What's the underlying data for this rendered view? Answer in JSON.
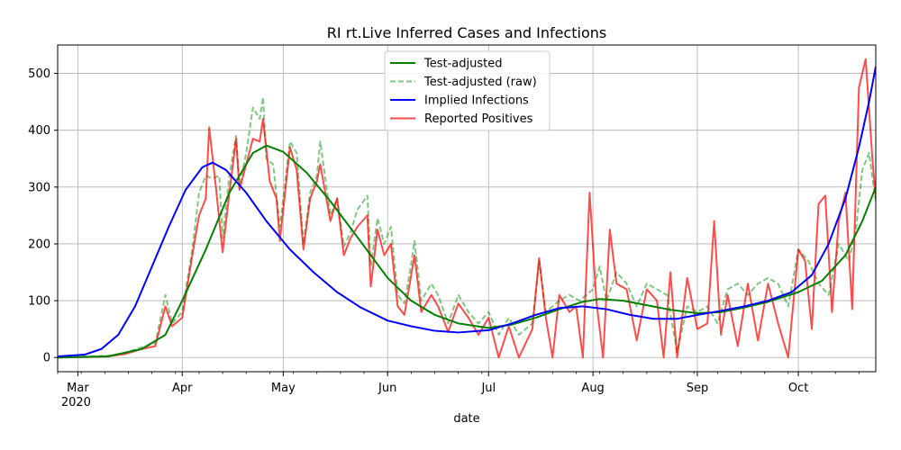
{
  "chart_data": {
    "type": "line",
    "title": "RI rt.Live Inferred Cases and Infections",
    "xlabel": "date",
    "ylabel": "",
    "x_range": [
      "2020-02-24",
      "2020-10-24"
    ],
    "ylim": [
      -25,
      550
    ],
    "grid": true,
    "legend_position": "top-center",
    "x_ticks": [
      {
        "date": "2020-03-01",
        "label": "Mar",
        "sublabel": "2020"
      },
      {
        "date": "2020-04-01",
        "label": "Apr"
      },
      {
        "date": "2020-05-01",
        "label": "May"
      },
      {
        "date": "2020-06-01",
        "label": "Jun"
      },
      {
        "date": "2020-07-01",
        "label": "Jul"
      },
      {
        "date": "2020-08-01",
        "label": "Aug"
      },
      {
        "date": "2020-09-01",
        "label": "Sep"
      },
      {
        "date": "2020-10-01",
        "label": "Oct"
      }
    ],
    "y_ticks": [
      0,
      100,
      200,
      300,
      400,
      500
    ],
    "series": [
      {
        "name": "Test-adjusted",
        "color": "#008000",
        "style": "solid",
        "points": [
          [
            "2020-02-24",
            0
          ],
          [
            "2020-03-10",
            2
          ],
          [
            "2020-03-20",
            15
          ],
          [
            "2020-03-27",
            40
          ],
          [
            "2020-04-01",
            100
          ],
          [
            "2020-04-08",
            190
          ],
          [
            "2020-04-15",
            290
          ],
          [
            "2020-04-22",
            360
          ],
          [
            "2020-04-26",
            373
          ],
          [
            "2020-05-01",
            362
          ],
          [
            "2020-05-08",
            325
          ],
          [
            "2020-05-15",
            275
          ],
          [
            "2020-05-22",
            220
          ],
          [
            "2020-06-01",
            140
          ],
          [
            "2020-06-08",
            100
          ],
          [
            "2020-06-15",
            75
          ],
          [
            "2020-06-22",
            60
          ],
          [
            "2020-07-01",
            52
          ],
          [
            "2020-07-08",
            58
          ],
          [
            "2020-07-15",
            70
          ],
          [
            "2020-07-22",
            85
          ],
          [
            "2020-07-29",
            98
          ],
          [
            "2020-08-03",
            103
          ],
          [
            "2020-08-10",
            100
          ],
          [
            "2020-08-17",
            92
          ],
          [
            "2020-08-24",
            84
          ],
          [
            "2020-09-01",
            78
          ],
          [
            "2020-09-08",
            80
          ],
          [
            "2020-09-15",
            88
          ],
          [
            "2020-09-22",
            98
          ],
          [
            "2020-10-01",
            115
          ],
          [
            "2020-10-08",
            135
          ],
          [
            "2020-10-15",
            180
          ],
          [
            "2020-10-20",
            240
          ],
          [
            "2020-10-24",
            300
          ]
        ]
      },
      {
        "name": "Test-adjusted (raw)",
        "color": "#2ca02c",
        "style": "dashed",
        "points": [
          [
            "2020-02-24",
            0
          ],
          [
            "2020-03-05",
            2
          ],
          [
            "2020-03-10",
            3
          ],
          [
            "2020-03-15",
            8
          ],
          [
            "2020-03-20",
            18
          ],
          [
            "2020-03-24",
            25
          ],
          [
            "2020-03-27",
            110
          ],
          [
            "2020-03-29",
            60
          ],
          [
            "2020-04-01",
            80
          ],
          [
            "2020-04-04",
            190
          ],
          [
            "2020-04-06",
            290
          ],
          [
            "2020-04-08",
            320
          ],
          [
            "2020-04-10",
            315
          ],
          [
            "2020-04-12",
            320
          ],
          [
            "2020-04-13",
            210
          ],
          [
            "2020-04-15",
            320
          ],
          [
            "2020-04-17",
            390
          ],
          [
            "2020-04-18",
            300
          ],
          [
            "2020-04-20",
            360
          ],
          [
            "2020-04-22",
            440
          ],
          [
            "2020-04-24",
            420
          ],
          [
            "2020-04-25",
            458
          ],
          [
            "2020-04-26",
            350
          ],
          [
            "2020-04-28",
            340
          ],
          [
            "2020-04-30",
            230
          ],
          [
            "2020-05-03",
            380
          ],
          [
            "2020-05-05",
            360
          ],
          [
            "2020-05-07",
            200
          ],
          [
            "2020-05-09",
            290
          ],
          [
            "2020-05-11",
            320
          ],
          [
            "2020-05-12",
            380
          ],
          [
            "2020-05-15",
            250
          ],
          [
            "2020-05-17",
            280
          ],
          [
            "2020-05-19",
            195
          ],
          [
            "2020-05-21",
            220
          ],
          [
            "2020-05-23",
            260
          ],
          [
            "2020-05-26",
            285
          ],
          [
            "2020-05-27",
            160
          ],
          [
            "2020-05-29",
            245
          ],
          [
            "2020-05-31",
            200
          ],
          [
            "2020-06-02",
            230
          ],
          [
            "2020-06-04",
            110
          ],
          [
            "2020-06-06",
            95
          ],
          [
            "2020-06-08",
            165
          ],
          [
            "2020-06-09",
            205
          ],
          [
            "2020-06-11",
            100
          ],
          [
            "2020-06-14",
            130
          ],
          [
            "2020-06-16",
            110
          ],
          [
            "2020-06-19",
            60
          ],
          [
            "2020-06-22",
            110
          ],
          [
            "2020-06-25",
            80
          ],
          [
            "2020-06-28",
            60
          ],
          [
            "2020-07-01",
            80
          ],
          [
            "2020-07-04",
            40
          ],
          [
            "2020-07-07",
            70
          ],
          [
            "2020-07-10",
            40
          ],
          [
            "2020-07-14",
            60
          ],
          [
            "2020-07-16",
            170
          ],
          [
            "2020-07-18",
            80
          ],
          [
            "2020-07-22",
            100
          ],
          [
            "2020-07-25",
            110
          ],
          [
            "2020-07-28",
            100
          ],
          [
            "2020-08-01",
            120
          ],
          [
            "2020-08-03",
            160
          ],
          [
            "2020-08-05",
            100
          ],
          [
            "2020-08-08",
            150
          ],
          [
            "2020-08-11",
            130
          ],
          [
            "2020-08-14",
            90
          ],
          [
            "2020-08-17",
            130
          ],
          [
            "2020-08-20",
            120
          ],
          [
            "2020-08-23",
            110
          ],
          [
            "2020-08-26",
            10
          ],
          [
            "2020-08-29",
            90
          ],
          [
            "2020-09-01",
            80
          ],
          [
            "2020-09-04",
            90
          ],
          [
            "2020-09-07",
            60
          ],
          [
            "2020-09-10",
            120
          ],
          [
            "2020-09-13",
            130
          ],
          [
            "2020-09-16",
            110
          ],
          [
            "2020-09-19",
            130
          ],
          [
            "2020-09-22",
            140
          ],
          [
            "2020-09-25",
            130
          ],
          [
            "2020-09-28",
            90
          ],
          [
            "2020-10-01",
            190
          ],
          [
            "2020-10-04",
            170
          ],
          [
            "2020-10-07",
            130
          ],
          [
            "2020-10-10",
            110
          ],
          [
            "2020-10-13",
            200
          ],
          [
            "2020-10-16",
            170
          ],
          [
            "2020-10-18",
            220
          ],
          [
            "2020-10-20",
            330
          ],
          [
            "2020-10-22",
            360
          ],
          [
            "2020-10-24",
            275
          ]
        ]
      },
      {
        "name": "Implied Infections",
        "color": "#0000ff",
        "style": "solid",
        "points": [
          [
            "2020-02-24",
            2
          ],
          [
            "2020-03-03",
            5
          ],
          [
            "2020-03-08",
            15
          ],
          [
            "2020-03-13",
            40
          ],
          [
            "2020-03-18",
            90
          ],
          [
            "2020-03-23",
            160
          ],
          [
            "2020-03-28",
            230
          ],
          [
            "2020-04-02",
            295
          ],
          [
            "2020-04-07",
            335
          ],
          [
            "2020-04-10",
            343
          ],
          [
            "2020-04-14",
            330
          ],
          [
            "2020-04-20",
            290
          ],
          [
            "2020-04-26",
            240
          ],
          [
            "2020-05-03",
            190
          ],
          [
            "2020-05-10",
            150
          ],
          [
            "2020-05-17",
            115
          ],
          [
            "2020-05-24",
            88
          ],
          [
            "2020-06-01",
            65
          ],
          [
            "2020-06-08",
            55
          ],
          [
            "2020-06-15",
            47
          ],
          [
            "2020-06-22",
            44
          ],
          [
            "2020-07-01",
            48
          ],
          [
            "2020-07-08",
            60
          ],
          [
            "2020-07-15",
            75
          ],
          [
            "2020-07-22",
            87
          ],
          [
            "2020-07-29",
            90
          ],
          [
            "2020-08-05",
            85
          ],
          [
            "2020-08-12",
            75
          ],
          [
            "2020-08-19",
            68
          ],
          [
            "2020-08-26",
            68
          ],
          [
            "2020-09-01",
            75
          ],
          [
            "2020-09-08",
            82
          ],
          [
            "2020-09-15",
            90
          ],
          [
            "2020-09-22",
            100
          ],
          [
            "2020-09-29",
            115
          ],
          [
            "2020-10-05",
            145
          ],
          [
            "2020-10-10",
            200
          ],
          [
            "2020-10-15",
            280
          ],
          [
            "2020-10-19",
            370
          ],
          [
            "2020-10-22",
            450
          ],
          [
            "2020-10-24",
            512
          ]
        ]
      },
      {
        "name": "Reported Positives",
        "color": "#ff0000",
        "style": "solid",
        "points": [
          [
            "2020-02-24",
            0
          ],
          [
            "2020-03-05",
            1
          ],
          [
            "2020-03-10",
            2
          ],
          [
            "2020-03-15",
            6
          ],
          [
            "2020-03-20",
            15
          ],
          [
            "2020-03-24",
            20
          ],
          [
            "2020-03-27",
            90
          ],
          [
            "2020-03-29",
            55
          ],
          [
            "2020-04-01",
            70
          ],
          [
            "2020-04-04",
            180
          ],
          [
            "2020-04-06",
            250
          ],
          [
            "2020-04-08",
            280
          ],
          [
            "2020-04-09",
            405
          ],
          [
            "2020-04-11",
            300
          ],
          [
            "2020-04-13",
            185
          ],
          [
            "2020-04-15",
            290
          ],
          [
            "2020-04-17",
            385
          ],
          [
            "2020-04-18",
            295
          ],
          [
            "2020-04-20",
            340
          ],
          [
            "2020-04-22",
            385
          ],
          [
            "2020-04-24",
            380
          ],
          [
            "2020-04-25",
            420
          ],
          [
            "2020-04-27",
            310
          ],
          [
            "2020-04-29",
            280
          ],
          [
            "2020-04-30",
            205
          ],
          [
            "2020-05-03",
            370
          ],
          [
            "2020-05-05",
            330
          ],
          [
            "2020-05-07",
            190
          ],
          [
            "2020-05-09",
            280
          ],
          [
            "2020-05-11",
            310
          ],
          [
            "2020-05-12",
            340
          ],
          [
            "2020-05-15",
            240
          ],
          [
            "2020-05-17",
            280
          ],
          [
            "2020-05-19",
            180
          ],
          [
            "2020-05-21",
            210
          ],
          [
            "2020-05-23",
            230
          ],
          [
            "2020-05-26",
            250
          ],
          [
            "2020-05-27",
            125
          ],
          [
            "2020-05-29",
            225
          ],
          [
            "2020-05-31",
            180
          ],
          [
            "2020-06-02",
            200
          ],
          [
            "2020-06-04",
            90
          ],
          [
            "2020-06-06",
            75
          ],
          [
            "2020-06-08",
            145
          ],
          [
            "2020-06-09",
            180
          ],
          [
            "2020-06-11",
            80
          ],
          [
            "2020-06-14",
            110
          ],
          [
            "2020-06-16",
            90
          ],
          [
            "2020-06-19",
            45
          ],
          [
            "2020-06-22",
            95
          ],
          [
            "2020-06-25",
            70
          ],
          [
            "2020-06-28",
            40
          ],
          [
            "2020-07-01",
            70
          ],
          [
            "2020-07-04",
            0
          ],
          [
            "2020-07-07",
            55
          ],
          [
            "2020-07-10",
            0
          ],
          [
            "2020-07-14",
            50
          ],
          [
            "2020-07-16",
            175
          ],
          [
            "2020-07-18",
            70
          ],
          [
            "2020-07-20",
            0
          ],
          [
            "2020-07-22",
            110
          ],
          [
            "2020-07-25",
            80
          ],
          [
            "2020-07-27",
            90
          ],
          [
            "2020-07-29",
            0
          ],
          [
            "2020-07-31",
            290
          ],
          [
            "2020-08-02",
            100
          ],
          [
            "2020-08-04",
            0
          ],
          [
            "2020-08-06",
            225
          ],
          [
            "2020-08-08",
            130
          ],
          [
            "2020-08-11",
            120
          ],
          [
            "2020-08-14",
            30
          ],
          [
            "2020-08-17",
            120
          ],
          [
            "2020-08-20",
            100
          ],
          [
            "2020-08-22",
            0
          ],
          [
            "2020-08-24",
            150
          ],
          [
            "2020-08-26",
            0
          ],
          [
            "2020-08-29",
            140
          ],
          [
            "2020-09-01",
            50
          ],
          [
            "2020-09-04",
            60
          ],
          [
            "2020-09-06",
            240
          ],
          [
            "2020-09-08",
            40
          ],
          [
            "2020-09-10",
            110
          ],
          [
            "2020-09-13",
            20
          ],
          [
            "2020-09-16",
            130
          ],
          [
            "2020-09-19",
            30
          ],
          [
            "2020-09-22",
            130
          ],
          [
            "2020-09-25",
            60
          ],
          [
            "2020-09-28",
            0
          ],
          [
            "2020-10-01",
            190
          ],
          [
            "2020-10-03",
            170
          ],
          [
            "2020-10-05",
            50
          ],
          [
            "2020-10-07",
            270
          ],
          [
            "2020-10-09",
            285
          ],
          [
            "2020-10-11",
            80
          ],
          [
            "2020-10-13",
            240
          ],
          [
            "2020-10-15",
            290
          ],
          [
            "2020-10-17",
            85
          ],
          [
            "2020-10-19",
            475
          ],
          [
            "2020-10-21",
            525
          ],
          [
            "2020-10-23",
            350
          ],
          [
            "2020-10-24",
            280
          ]
        ]
      }
    ]
  }
}
